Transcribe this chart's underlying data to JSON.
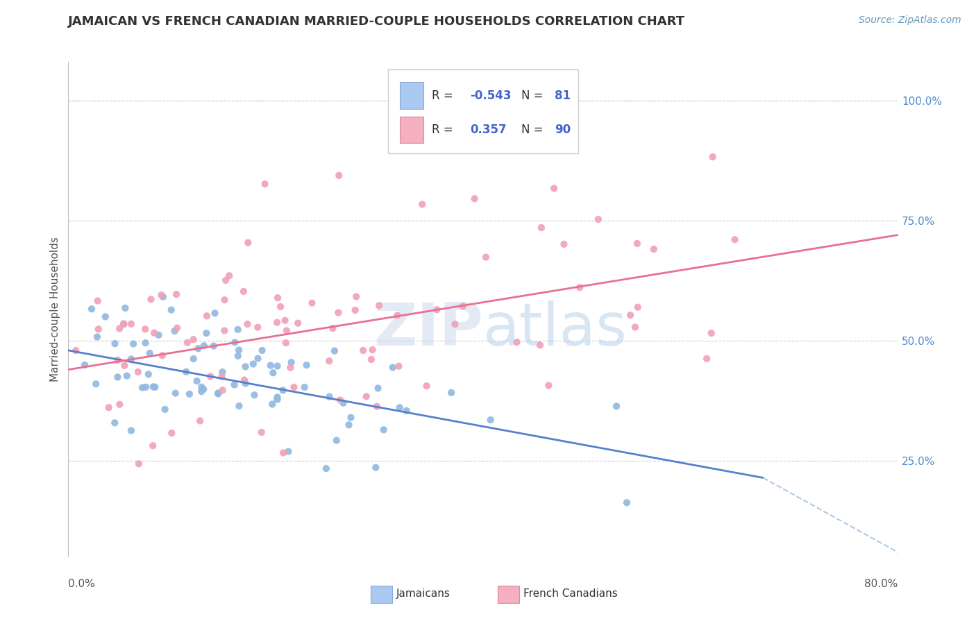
{
  "title": "JAMAICAN VS FRENCH CANADIAN MARRIED-COUPLE HOUSEHOLDS CORRELATION CHART",
  "source": "Source: ZipAtlas.com",
  "ylabel": "Married-couple Households",
  "right_yticks": [
    "100.0%",
    "75.0%",
    "50.0%",
    "25.0%"
  ],
  "right_ytick_vals": [
    1.0,
    0.75,
    0.5,
    0.25
  ],
  "blue_scatter_color": "#90b8e0",
  "pink_scatter_color": "#f0a0b8",
  "blue_line_color": "#5580cc",
  "pink_line_color": "#e87090",
  "dashed_line_color": "#b0c8e8",
  "xmin": 0.0,
  "xmax": 0.8,
  "ymin": 0.05,
  "ymax": 1.08,
  "watermark": "ZIPAtlas",
  "background_color": "#ffffff",
  "grid_color": "#cccccc",
  "legend_blue_sq": "#aac8f0",
  "legend_pink_sq": "#f4b0c0",
  "R_blue_str": "-0.543",
  "N_blue_str": "81",
  "R_pink_str": "0.357",
  "N_pink_str": "90",
  "legend_text_color": "#333333",
  "legend_val_color": "#4466cc",
  "right_tick_color": "#5588cc"
}
